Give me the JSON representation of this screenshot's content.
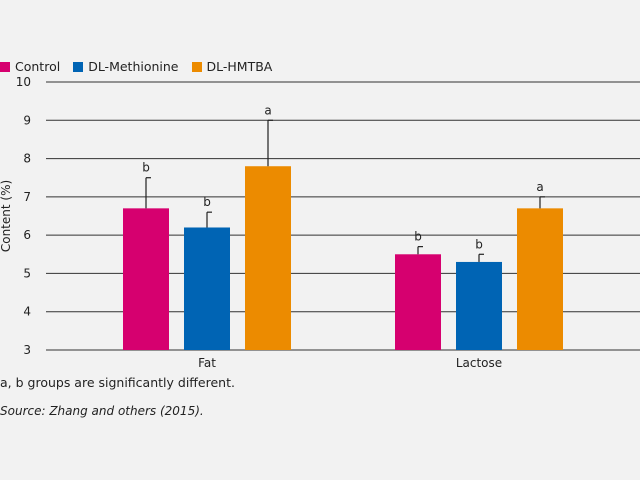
{
  "chart_data": {
    "type": "bar",
    "categories": [
      "Fat",
      "Lactose"
    ],
    "series": [
      {
        "name": "Control",
        "color": "#d6006f",
        "values": [
          6.7,
          5.5
        ],
        "errors": [
          0.8,
          0.2
        ],
        "labels": [
          "b",
          "b"
        ]
      },
      {
        "name": "DL-Methionine",
        "color": "#0064b4",
        "values": [
          6.2,
          5.3
        ],
        "errors": [
          0.4,
          0.2
        ],
        "labels": [
          "b",
          "b"
        ]
      },
      {
        "name": "DL-HMTBA",
        "color": "#ec8b00",
        "values": [
          7.8,
          6.7
        ],
        "errors": [
          1.2,
          0.3
        ],
        "labels": [
          "a",
          "a"
        ]
      }
    ],
    "ylabel": "Content (%)",
    "ylim": [
      3,
      10
    ],
    "yticks": [
      3,
      4,
      5,
      6,
      7,
      8,
      9,
      10
    ],
    "grid": true,
    "legend": "top-left"
  },
  "footnote": "a, b groups are significantly different.",
  "source": "Source: Zhang and others (2015)."
}
